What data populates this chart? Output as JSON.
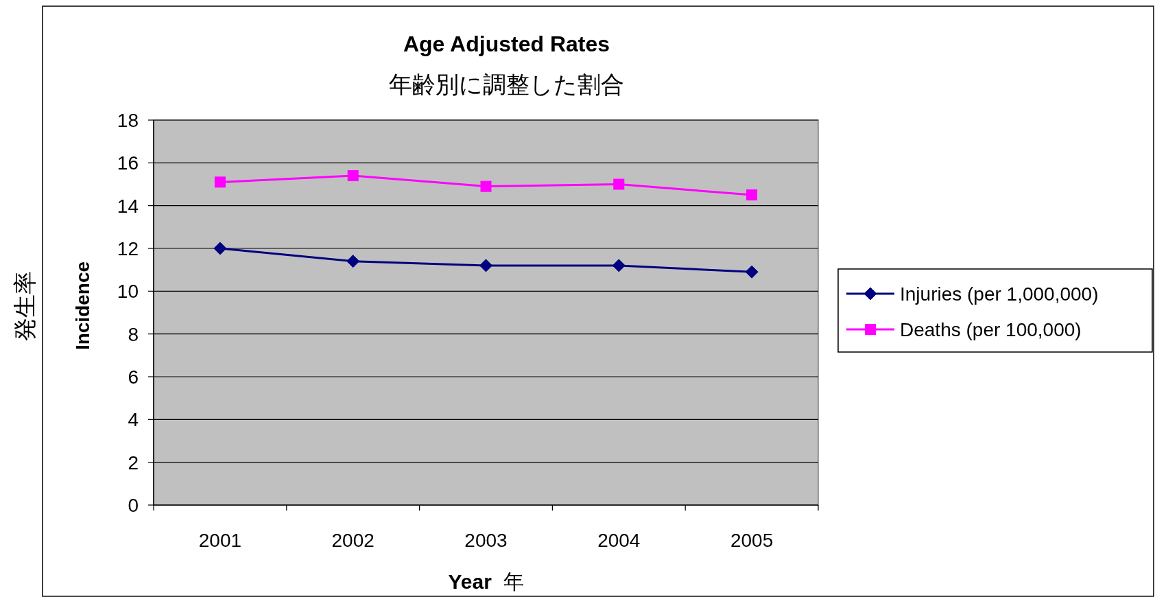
{
  "chart_data": {
    "type": "line",
    "title": "**Age Adjusted Rates**",
    "subtitle": "年齢別に調整した割合",
    "xlabel": "**Year** 年",
    "ylabel": "**Incidence** 発生率",
    "categories": [
      "2001",
      "2002",
      "2003",
      "2004",
      "2005"
    ],
    "series": [
      {
        "name": "Injuries (per 1,000,000)",
        "color": "#000080",
        "marker": "diamond",
        "values": [
          12.0,
          11.4,
          11.2,
          11.2,
          10.9
        ]
      },
      {
        "name": "Deaths (per 100,000)",
        "color": "#ff00ff",
        "marker": "square",
        "values": [
          15.1,
          15.4,
          14.9,
          15.0,
          14.5
        ]
      }
    ],
    "ylim": [
      0,
      18
    ],
    "yticks": [
      0,
      2,
      4,
      6,
      8,
      10,
      12,
      14,
      16,
      18
    ],
    "grid": "y",
    "legend": "right",
    "line_style": "solid"
  }
}
